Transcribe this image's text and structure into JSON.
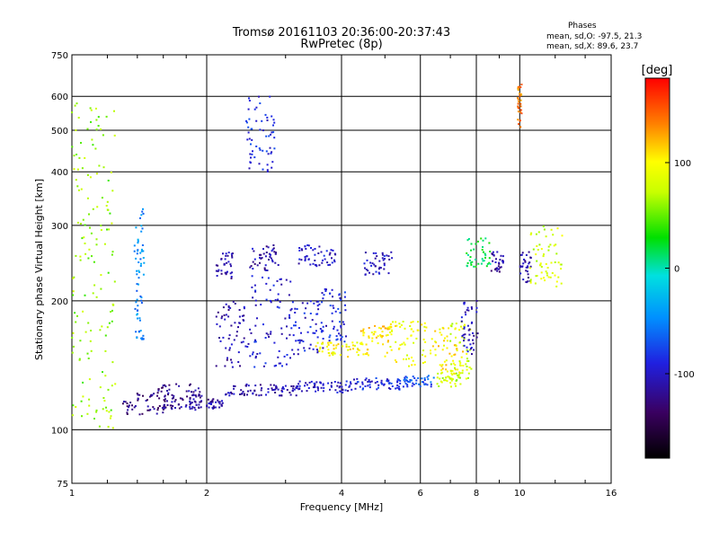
{
  "chart_data": {
    "type": "scatter",
    "title": "Tromsø 20161103 20:36:00-20:37:43",
    "subtitle": "RwPretec (8p)",
    "xlabel": "Frequency [MHz]",
    "ylabel": "Stationary phase Virtual Height [km]",
    "x_scale": "log",
    "y_scale": "log",
    "xlim": [
      1,
      16
    ],
    "ylim": [
      75,
      750
    ],
    "x_ticks": [
      1,
      2,
      4,
      6,
      8,
      10,
      16
    ],
    "y_ticks": [
      75,
      100,
      200,
      300,
      400,
      500,
      600,
      750
    ],
    "x_grid": [
      2,
      4,
      6,
      8,
      10
    ],
    "y_grid": [
      100,
      200,
      300,
      400,
      500,
      600
    ],
    "phases_box": {
      "heading": "Phases",
      "line_o": "mean, sd,O: -97.5, 21.3",
      "line_x": "mean, sd,X:  89.6, 23.7"
    },
    "colorbar": {
      "label": "[deg]",
      "range": [
        -180,
        180
      ],
      "ticks": [
        100,
        0,
        -100
      ]
    },
    "clusters": [
      {
        "f": [
          1.8,
          1.95
        ],
        "h": [
          110,
          125
        ],
        "phase": -110
      },
      {
        "f": [
          2.0,
          2.2
        ],
        "h": [
          112,
          118
        ],
        "phase": -115
      },
      {
        "f": [
          2.2,
          3.2
        ],
        "h": [
          120,
          128
        ],
        "phase": -110
      },
      {
        "f": [
          3.2,
          4.2
        ],
        "h": [
          122,
          130
        ],
        "phase": -100
      },
      {
        "f": [
          4.2,
          5.5
        ],
        "h": [
          124,
          132
        ],
        "phase": -90
      },
      {
        "f": [
          5.5,
          6.5
        ],
        "h": [
          126,
          134
        ],
        "phase": -70
      },
      {
        "f": [
          6.5,
          7.4
        ],
        "h": [
          126,
          136
        ],
        "phase": 75
      },
      {
        "f": [
          1.3,
          1.7
        ],
        "h": [
          108,
          122
        ],
        "phase": -125
      },
      {
        "f": [
          1.55,
          1.9
        ],
        "h": [
          112,
          128
        ],
        "phase": -120
      },
      {
        "f": [
          2.1,
          2.5
        ],
        "h": [
          140,
          200
        ],
        "phase": -110
      },
      {
        "f": [
          2.5,
          3.1
        ],
        "h": [
          140,
          230
        ],
        "phase": -95
      },
      {
        "f": [
          2.1,
          2.3
        ],
        "h": [
          225,
          260
        ],
        "phase": -110
      },
      {
        "f": [
          2.5,
          2.9
        ],
        "h": [
          235,
          270
        ],
        "phase": -110
      },
      {
        "f": [
          3.1,
          3.7
        ],
        "h": [
          150,
          200
        ],
        "phase": -95
      },
      {
        "f": [
          3.6,
          4.1
        ],
        "h": [
          160,
          215
        ],
        "phase": -90
      },
      {
        "f": [
          3.5,
          4.6
        ],
        "h": [
          148,
          160
        ],
        "phase": 100
      },
      {
        "f": [
          4.4,
          5.2
        ],
        "h": [
          158,
          175
        ],
        "phase": 110
      },
      {
        "f": [
          5.0,
          6.2
        ],
        "h": [
          140,
          180
        ],
        "phase": 95
      },
      {
        "f": [
          6.3,
          7.5
        ],
        "h": [
          135,
          175
        ],
        "phase": 105
      },
      {
        "f": [
          7.0,
          7.8
        ],
        "h": [
          130,
          180
        ],
        "phase": 80
      },
      {
        "f": [
          7.4,
          8.1
        ],
        "h": [
          150,
          200
        ],
        "phase": -105
      },
      {
        "f": [
          2.45,
          2.85
        ],
        "h": [
          400,
          600
        ],
        "phase": -90
      },
      {
        "f": [
          8.6,
          9.2
        ],
        "h": [
          230,
          260
        ],
        "phase": -115
      },
      {
        "f": [
          10.0,
          10.6
        ],
        "h": [
          220,
          260
        ],
        "phase": -110
      },
      {
        "f": [
          10.5,
          12.5
        ],
        "h": [
          215,
          300
        ],
        "phase": 80
      },
      {
        "f": [
          7.6,
          8.6
        ],
        "h": [
          240,
          280
        ],
        "phase": 20
      },
      {
        "f": [
          1.38,
          1.45
        ],
        "h": [
          160,
          340
        ],
        "phase": -50
      },
      {
        "f": [
          9.9,
          10.1
        ],
        "h": [
          500,
          650
        ],
        "phase": 140
      },
      {
        "f": [
          4.5,
          5.2
        ],
        "h": [
          230,
          260
        ],
        "phase": -100
      },
      {
        "f": [
          3.2,
          3.9
        ],
        "h": [
          240,
          270
        ],
        "phase": -100
      },
      {
        "f": [
          1.0,
          1.25
        ],
        "h": [
          100,
          600
        ],
        "phase": 60
      }
    ]
  }
}
